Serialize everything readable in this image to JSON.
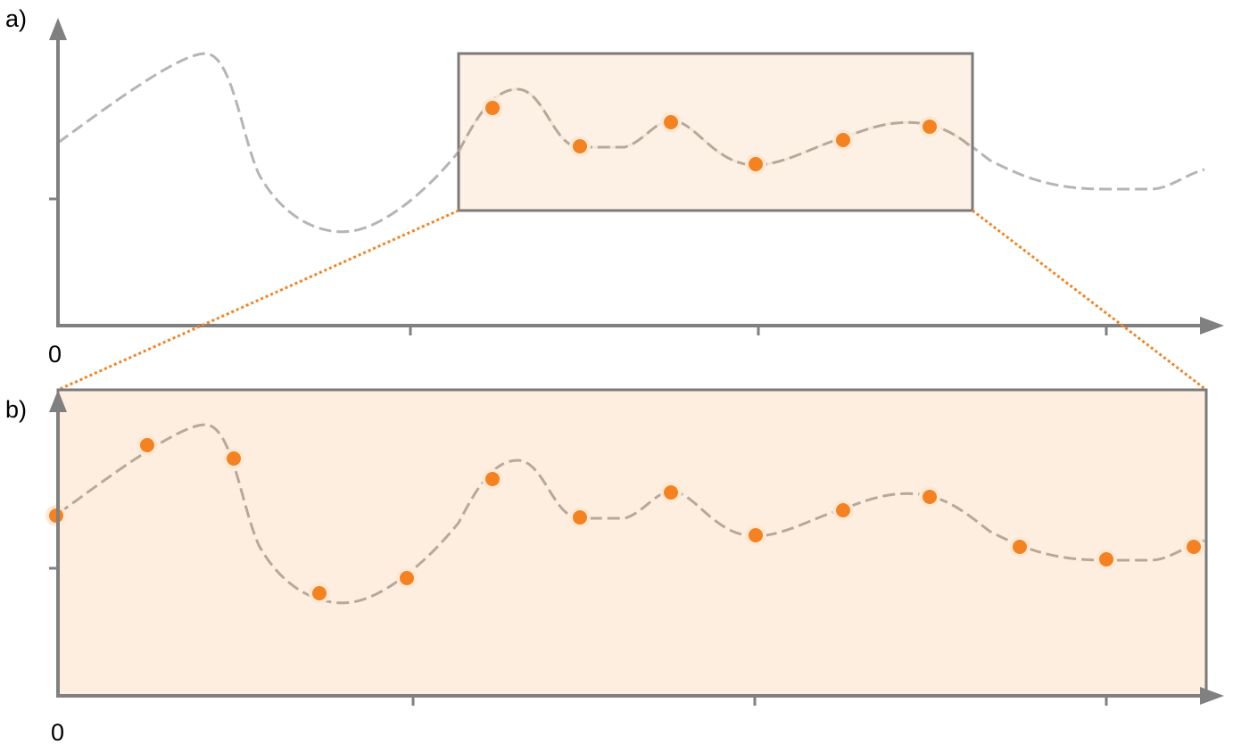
{
  "panels": [
    {
      "label": "a)",
      "origin": "0"
    },
    {
      "label": "b)",
      "origin": "0"
    }
  ]
}
